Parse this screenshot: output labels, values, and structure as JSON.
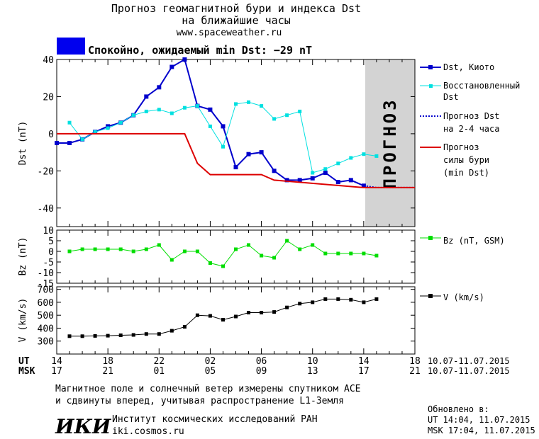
{
  "header": {
    "title_line1": "Прогноз геомагнитной бури и индекса Dst",
    "title_line2": "на ближайшие часы",
    "url": "www.spaceweather.ru",
    "status_text": "Спокойно, ожидаемый min Dst: −29 nT",
    "status_color": "#0000ee"
  },
  "legend": {
    "dst_kyoto": "Dst, Киото",
    "restored_line1": "Восстановленный",
    "restored_line2": "Dst",
    "forecast_dst_line1": "Прогноз Dst",
    "forecast_dst_line2": "на 2-4 часа",
    "storm_line1": "Прогноз",
    "storm_line2": "силы бури",
    "storm_line3": "(min Dst)",
    "bz": "Bz (nT, GSM)",
    "v": "V (km/s)"
  },
  "forecast_label": "ПРОГНОЗ",
  "time_axis": {
    "ut_label": "UT",
    "msk_label": "MSK",
    "ut_ticks": [
      "14",
      "18",
      "22",
      "02",
      "06",
      "10",
      "14",
      "18"
    ],
    "msk_ticks": [
      "17",
      "21",
      "01",
      "05",
      "09",
      "13",
      "17",
      "21"
    ],
    "ut_dates": "10.07-11.07.2015",
    "msk_dates": "10.07-11.07.2015"
  },
  "footer": {
    "note_line1": "Магнитное поле и солнечный ветер измерены спутником ACE",
    "note_line2": "и сдвинуты вперед, учитывая распространение L1-Земля",
    "logo_text": "ИКИ",
    "institute": "Институт космических исследований РАН",
    "site": "iki.cosmos.ru",
    "updated_label": "Обновлено в:",
    "updated_ut": "UT  14:04, 11.07.2015",
    "updated_msk": "MSK 17:04, 11.07.2015"
  },
  "chart_data": [
    {
      "type": "line",
      "ylabel": "Dst (nT)",
      "ylim": [
        -50,
        40
      ],
      "yticks": [
        -40,
        -20,
        0,
        20,
        40
      ],
      "x_hours_range": [
        0,
        28
      ],
      "forecast_region_hours": [
        24,
        28
      ],
      "series": [
        {
          "name": "Dst, Киото",
          "color": "#0000cc",
          "x": [
            0,
            1,
            2,
            3,
            4,
            5,
            6,
            7,
            8,
            9,
            10,
            11,
            12,
            13,
            14,
            15,
            16,
            17,
            18,
            19,
            20,
            21,
            22,
            23,
            24
          ],
          "y": [
            -5,
            -5,
            -3,
            1,
            4,
            6,
            10,
            20,
            25,
            36,
            40,
            15,
            13,
            4,
            -18,
            -11,
            -10,
            -20,
            -25,
            -25,
            -24,
            -21,
            -26,
            -25,
            -28
          ]
        },
        {
          "name": "Восстановленный Dst",
          "color": "#00e0e0",
          "x": [
            1,
            2,
            3,
            4,
            5,
            6,
            7,
            8,
            9,
            10,
            11,
            12,
            13,
            14,
            15,
            16,
            17,
            18,
            19,
            20,
            21,
            22,
            23,
            24,
            25
          ],
          "y": [
            6,
            -3,
            1,
            3,
            6,
            10,
            12,
            13,
            11,
            14,
            15,
            4,
            -7,
            16,
            17,
            15,
            8,
            10,
            12,
            -21,
            -19,
            -16,
            -13,
            -11,
            -12
          ]
        },
        {
          "name": "Прогноз Dst на 2-4 часа",
          "color": "#0000cc",
          "x": [
            24,
            25,
            26,
            27,
            28
          ],
          "y": [
            -28,
            -29,
            -29,
            -29,
            -29
          ]
        },
        {
          "name": "Прогноз силы бури (min Dst)",
          "color": "#dd0000",
          "x": [
            0,
            10,
            11,
            12,
            16,
            17,
            24,
            28
          ],
          "y": [
            0,
            0,
            -16,
            -22,
            -22,
            -25,
            -29,
            -29
          ]
        }
      ]
    },
    {
      "type": "line",
      "ylabel": "Bz (nT)",
      "ylim": [
        -15,
        10
      ],
      "yticks": [
        -15,
        -10,
        -5,
        0,
        5,
        10
      ],
      "series": [
        {
          "name": "Bz (nT, GSM)",
          "color": "#00dd00",
          "x": [
            1,
            2,
            3,
            4,
            5,
            6,
            7,
            8,
            9,
            10,
            11,
            12,
            13,
            14,
            15,
            16,
            17,
            18,
            19,
            20,
            21,
            22,
            23,
            24,
            25
          ],
          "y": [
            0,
            1,
            1,
            1,
            1,
            0,
            1,
            3,
            -4,
            0,
            0,
            -5.5,
            -7,
            1,
            3,
            -2,
            -3,
            5,
            1,
            3,
            -1,
            -1,
            -1,
            -1,
            -2
          ]
        }
      ]
    },
    {
      "type": "line",
      "ylabel": "V (km/s)",
      "ylim": [
        200,
        720
      ],
      "yticks": [
        300,
        400,
        500,
        600,
        700
      ],
      "series": [
        {
          "name": "V (km/s)",
          "color": "#000000",
          "x": [
            1,
            2,
            3,
            4,
            5,
            6,
            7,
            8,
            9,
            10,
            11,
            12,
            13,
            14,
            15,
            16,
            17,
            18,
            19,
            20,
            21,
            22,
            23,
            24,
            25
          ],
          "y": [
            338,
            338,
            340,
            342,
            345,
            348,
            355,
            355,
            380,
            410,
            500,
            495,
            465,
            490,
            520,
            520,
            525,
            560,
            590,
            600,
            625,
            625,
            620,
            600,
            625
          ]
        }
      ]
    }
  ]
}
